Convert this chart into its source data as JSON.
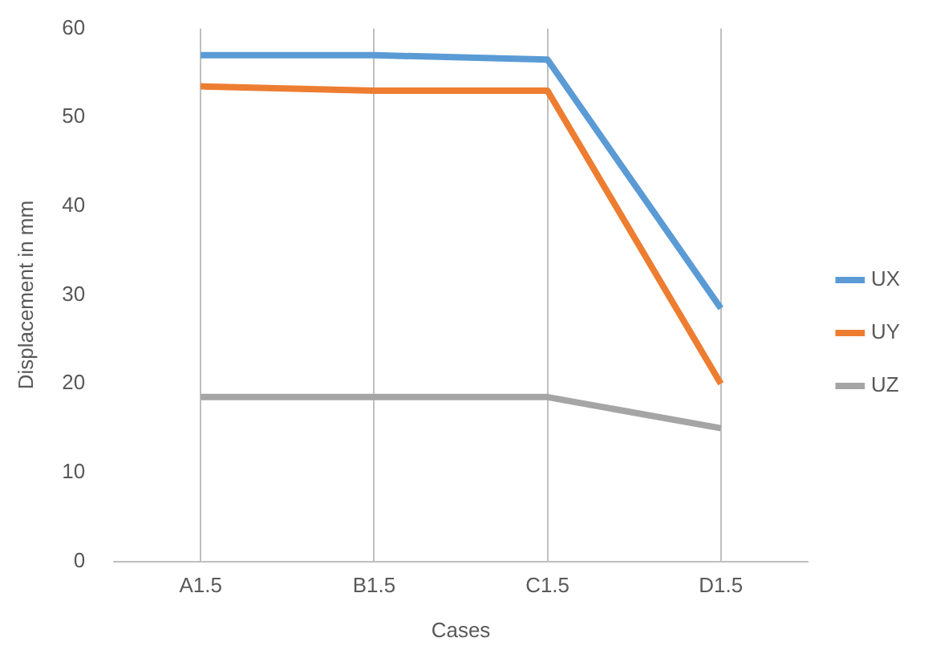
{
  "chart_data": {
    "type": "line",
    "xlabel": "Cases",
    "ylabel": "Displacement in mm",
    "categories": [
      "A1.5",
      "B1.5",
      "C1.5",
      "D1.5"
    ],
    "series": [
      {
        "name": "UX",
        "color": "#5b9bd5",
        "values": [
          57,
          57,
          56.5,
          28.5
        ]
      },
      {
        "name": "UY",
        "color": "#ed7d31",
        "values": [
          53.5,
          53,
          53,
          20
        ]
      },
      {
        "name": "UZ",
        "color": "#a5a5a5",
        "values": [
          18.5,
          18.5,
          18.5,
          15
        ]
      }
    ],
    "ylim": [
      0,
      60
    ],
    "yticks": [
      0,
      10,
      20,
      30,
      40,
      50,
      60
    ],
    "grid": "x",
    "legend": "right",
    "marker": "none",
    "line_style": "solid"
  }
}
